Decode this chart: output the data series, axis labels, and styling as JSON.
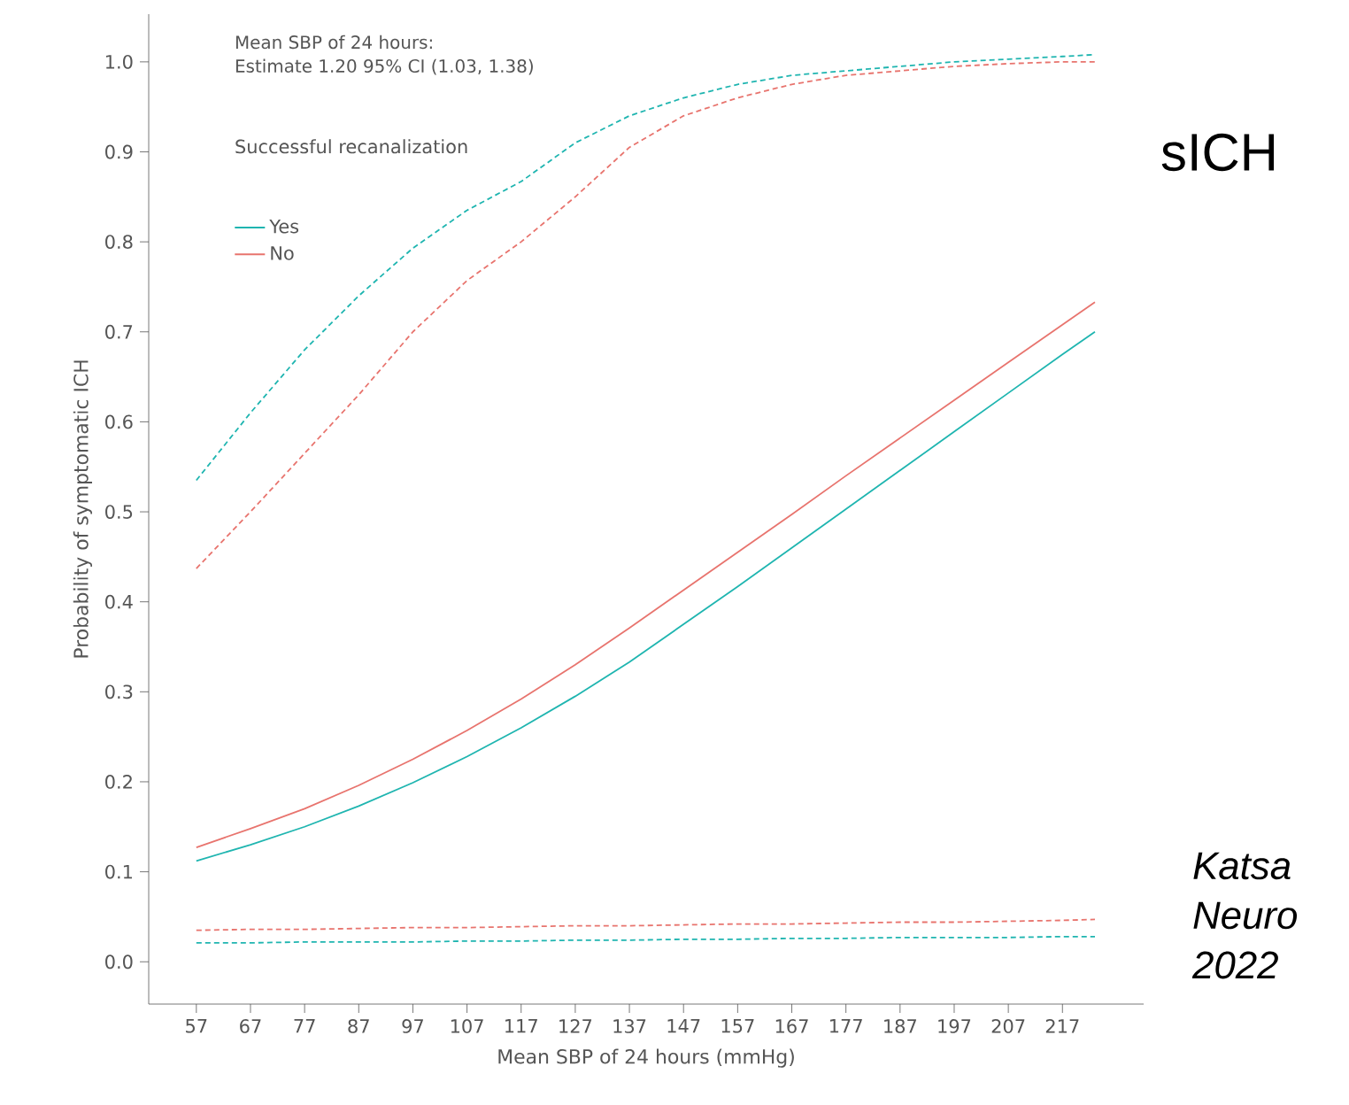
{
  "chart_data": {
    "type": "line",
    "title": "sICH",
    "xlabel": "Mean SBP of 24 hours (mmHg)",
    "ylabel": "Probability of symptomatic ICH",
    "legend_title": "Successful recanalization",
    "legend": "top left",
    "annotations": [
      "Mean SBP of 24 hours:",
      "Estimate 1.20 95% CI (1.03, 1.38)",
      "Katsa",
      "Neuro",
      "2022"
    ],
    "xlim": [
      48.2,
      232
    ],
    "ylim": [
      -0.047,
      1.053
    ],
    "xticks": [
      57,
      67,
      77,
      87,
      97,
      107,
      117,
      127,
      137,
      147,
      157,
      167,
      177,
      187,
      197,
      207,
      217
    ],
    "yticks": [
      {
        "value": 0,
        "label": "0.0"
      },
      {
        "value": 0.1,
        "label": "0.1"
      },
      {
        "value": 0.2,
        "label": "0.2"
      },
      {
        "value": 0.3,
        "label": "0.3"
      },
      {
        "value": 0.4,
        "label": "0.4"
      },
      {
        "value": 0.5,
        "label": "0.5"
      },
      {
        "value": 0.6,
        "label": "0.6"
      },
      {
        "value": 0.7,
        "label": "0.7"
      },
      {
        "value": 0.8,
        "label": "0.8"
      },
      {
        "value": 0.9,
        "label": "0.9"
      },
      {
        "value": 1,
        "label": "1.0"
      }
    ],
    "x": [
      57,
      67,
      77,
      87,
      97,
      107,
      117,
      127,
      137,
      147,
      157,
      167,
      177,
      187,
      197,
      207,
      217,
      223
    ],
    "series": [
      {
        "name": "Yes",
        "color": "#1fb5b0",
        "line_style": "solid",
        "values": [
          0.112,
          0.13,
          0.15,
          0.173,
          0.199,
          0.228,
          0.26,
          0.295,
          0.333,
          0.375,
          0.417,
          0.46,
          0.503,
          0.546,
          0.589,
          0.632,
          0.675,
          0.7
        ]
      },
      {
        "name": "No",
        "color": "#e8746e",
        "line_style": "solid",
        "values": [
          0.127,
          0.148,
          0.17,
          0.196,
          0.225,
          0.257,
          0.292,
          0.33,
          0.371,
          0.413,
          0.455,
          0.497,
          0.54,
          0.582,
          0.624,
          0.666,
          0.708,
          0.733
        ]
      },
      {
        "color": "#1fb5b0",
        "line_style": "dashed",
        "values": [
          0.535,
          0.61,
          0.68,
          0.74,
          0.793,
          0.835,
          0.867,
          0.91,
          0.94,
          0.96,
          0.975,
          0.985,
          0.99,
          0.995,
          1.0,
          1.003,
          1.006,
          1.008
        ]
      },
      {
        "color": "#e8746e",
        "line_style": "dashed",
        "values": [
          0.437,
          0.5,
          0.565,
          0.63,
          0.7,
          0.757,
          0.8,
          0.85,
          0.905,
          0.94,
          0.96,
          0.975,
          0.985,
          0.99,
          0.995,
          0.998,
          1.0,
          1.0
        ]
      },
      {
        "color": "#1fb5b0",
        "line_style": "dashed",
        "values": [
          0.021,
          0.021,
          0.022,
          0.022,
          0.022,
          0.023,
          0.023,
          0.024,
          0.024,
          0.025,
          0.025,
          0.026,
          0.026,
          0.027,
          0.027,
          0.027,
          0.028,
          0.028
        ]
      },
      {
        "color": "#e8746e",
        "line_style": "dashed",
        "values": [
          0.035,
          0.036,
          0.036,
          0.037,
          0.038,
          0.038,
          0.039,
          0.04,
          0.04,
          0.041,
          0.042,
          0.042,
          0.043,
          0.044,
          0.044,
          0.045,
          0.046,
          0.047
        ]
      }
    ]
  }
}
